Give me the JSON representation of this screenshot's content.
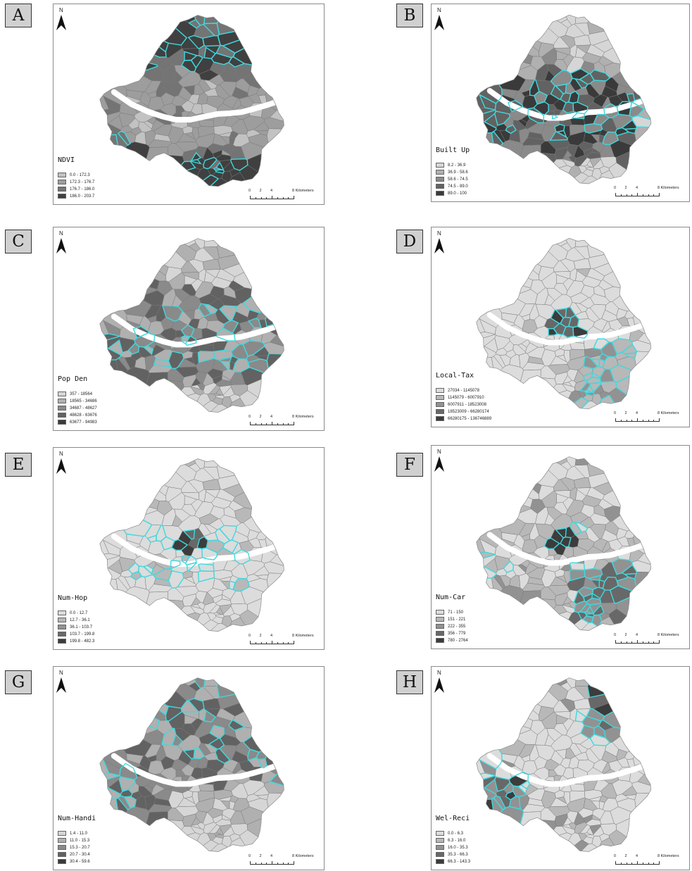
{
  "panels": [
    {
      "letter": "A",
      "title": "NDVI",
      "legend": [
        "0.0 - 172.3",
        "172.3 - 176.7",
        "176.7 - 186.0",
        "186.0 - 203.7"
      ],
      "legend_colors": [
        "#c2c2c2",
        "#9d9d9d",
        "#747474",
        "#404040"
      ],
      "scale": [
        "0",
        "2",
        "4",
        "8 Kilometers"
      ]
    },
    {
      "letter": "B",
      "title": "Built Up",
      "legend": [
        "8.2 - 36.9",
        "36.9 - 58.6",
        "58.6 - 74.5",
        "74.5 - 89.0",
        "89.0 - 100"
      ],
      "legend_colors": [
        "#d6d6d6",
        "#b0b0b0",
        "#8a8a8a",
        "#626262",
        "#3a3a3a"
      ],
      "scale": [
        "0",
        "2",
        "4",
        "8 Kilometers"
      ]
    },
    {
      "letter": "C",
      "title": "Pop Den",
      "legend": [
        "357 - 18564",
        "18565 - 34686",
        "34687 - 48627",
        "48628 - 63676",
        "63677 - 94983"
      ],
      "legend_colors": [
        "#d6d6d6",
        "#b0b0b0",
        "#8a8a8a",
        "#626262",
        "#3a3a3a"
      ],
      "scale": [
        "0",
        "2",
        "4",
        "8 Kilometers"
      ]
    },
    {
      "letter": "D",
      "title": "Local-Tax",
      "legend": [
        "27034 - 1145078",
        "1145079 - 6007910",
        "6007911 - 18523008",
        "18523009 - 66280174",
        "66280175 - 136746889"
      ],
      "legend_colors": [
        "#dcdcdc",
        "#b8b8b8",
        "#929292",
        "#686868",
        "#3c3c3c"
      ],
      "scale": [
        "0",
        "2",
        "4",
        "8 Kilometers"
      ]
    },
    {
      "letter": "E",
      "title": "Num-Hop",
      "legend": [
        "0.0 - 12.7",
        "12.7 - 36.1",
        "36.1 - 103.7",
        "103.7 - 199.8",
        "199.8 - 482.3"
      ],
      "legend_colors": [
        "#dcdcdc",
        "#b8b8b8",
        "#929292",
        "#686868",
        "#3c3c3c"
      ],
      "scale": [
        "0",
        "2",
        "4",
        "8 Kilometers"
      ]
    },
    {
      "letter": "F",
      "title": "Num-Car",
      "legend": [
        "71 - 150",
        "151 - 221",
        "222 - 355",
        "356 - 779",
        "780 - 2764"
      ],
      "legend_colors": [
        "#dcdcdc",
        "#b8b8b8",
        "#929292",
        "#686868",
        "#3c3c3c"
      ],
      "scale": [
        "0",
        "2",
        "4",
        "8 Kilometers"
      ]
    },
    {
      "letter": "G",
      "title": "Num-Handi",
      "legend": [
        "1.4 - 11.0",
        "11.0 - 15.3",
        "15.3 - 20.7",
        "20.7 - 30.4",
        "30.4 - 59.6"
      ],
      "legend_colors": [
        "#d6d6d6",
        "#b0b0b0",
        "#8a8a8a",
        "#626262",
        "#3a3a3a"
      ],
      "scale": [
        "0",
        "2",
        "4",
        "8 Kilometers"
      ]
    },
    {
      "letter": "H",
      "title": "Wel-Reci",
      "legend": [
        "0.0 - 6.3",
        "6.3 - 16.0",
        "16.0 - 35.3",
        "35.3 - 66.3",
        "66.3 - 143.3"
      ],
      "legend_colors": [
        "#dcdcdc",
        "#b8b8b8",
        "#929292",
        "#686868",
        "#3c3c3c"
      ],
      "scale": [
        "0",
        "2",
        "4",
        "8 Kilometers"
      ]
    }
  ],
  "north_label": "N",
  "highlight_color": "#3fd8de",
  "river_color": "#ffffff"
}
